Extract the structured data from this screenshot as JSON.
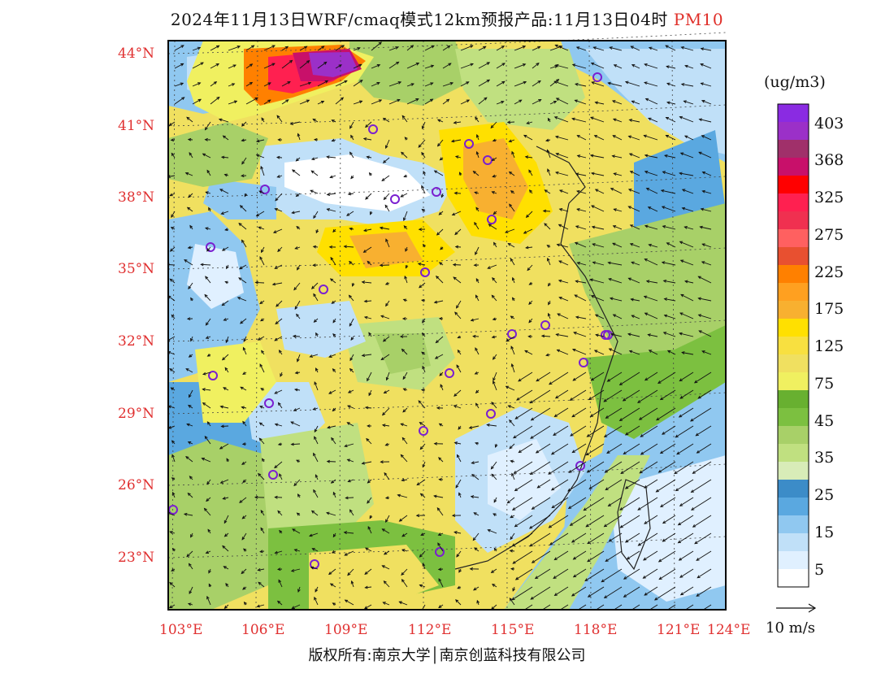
{
  "title": {
    "main": "2024年11月13日WRF/cmaq模式12km预报产品:11月13日04时",
    "variable": "PM10"
  },
  "map": {
    "lat_labels": [
      "44°N",
      "41°N",
      "38°N",
      "35°N",
      "32°N",
      "29°N",
      "26°N",
      "23°N"
    ],
    "lon_labels": [
      "103°E",
      "106°E",
      "109°E",
      "112°E",
      "115°E",
      "118°E",
      "121°E",
      "124°E"
    ]
  },
  "colorbar": {
    "unit": "(ug/m3)",
    "labels": [
      "403",
      "368",
      "325",
      "275",
      "225",
      "175",
      "125",
      "75",
      "45",
      "35",
      "25",
      "15",
      "5"
    ],
    "colors": [
      "#8a2be2",
      "#9b30c8",
      "#a0306a",
      "#c8106a",
      "#ff0000",
      "#ff2050",
      "#f03050",
      "#ff6060",
      "#e85030",
      "#ff8000",
      "#ffa020",
      "#f8b030",
      "#ffe000",
      "#f8e040",
      "#f0e060",
      "#f0f060",
      "#68b030",
      "#7cc040",
      "#a8d068",
      "#c0e080",
      "#d8ecb8",
      "#3c8cc8",
      "#5aa8e0",
      "#90c8f0",
      "#c0e0f8",
      "#e0f0ff",
      "#ffffff"
    ]
  },
  "wind_reference": "10 m/s",
  "copyright": "版权所有:南京大学│南京创蓝科技有限公司",
  "stations": [
    {
      "id": "s1"
    },
    {
      "id": "s2"
    },
    {
      "id": "s3"
    },
    {
      "id": "s4"
    },
    {
      "id": "s5"
    },
    {
      "id": "s6"
    },
    {
      "id": "s7"
    },
    {
      "id": "s8"
    },
    {
      "id": "s9"
    },
    {
      "id": "s10"
    },
    {
      "id": "s11"
    },
    {
      "id": "s12"
    },
    {
      "id": "s13"
    },
    {
      "id": "s14"
    },
    {
      "id": "s15"
    },
    {
      "id": "s16"
    },
    {
      "id": "s17"
    },
    {
      "id": "s18"
    },
    {
      "id": "s19"
    },
    {
      "id": "s20"
    },
    {
      "id": "s21"
    },
    {
      "id": "s22"
    },
    {
      "id": "s23"
    },
    {
      "id": "s24"
    },
    {
      "id": "s25"
    },
    {
      "id": "s26"
    }
  ]
}
